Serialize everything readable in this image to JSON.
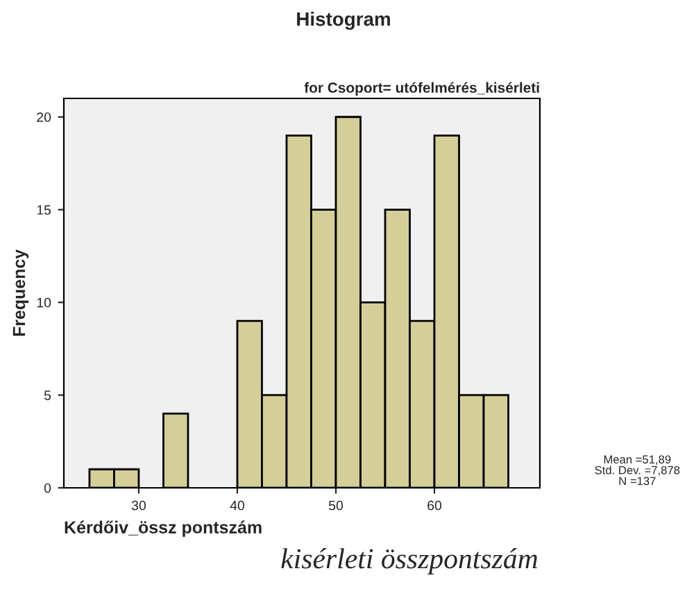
{
  "chart_data": {
    "type": "histogram",
    "title": "Histogram",
    "subtitle": "for Csoport= utófelmérés_kisérleti",
    "xlabel": "Kérdőiv_össz pontszám",
    "ylabel": "Frequency",
    "bins": [
      25,
      27.5,
      30,
      32.5,
      35,
      37.5,
      40,
      42.5,
      45,
      47.5,
      50,
      52.5,
      55,
      57.5,
      60,
      62.5,
      65,
      67.5
    ],
    "values": [
      1,
      1,
      0,
      4,
      0,
      0,
      9,
      5,
      19,
      15,
      20,
      10,
      15,
      9,
      19,
      5,
      5
    ],
    "color": "#d4cf98",
    "xlim": [
      22.4,
      70.7
    ],
    "xticks": [
      30,
      40,
      50,
      60
    ],
    "ylim": [
      0,
      21
    ],
    "yticks": [
      0,
      5,
      10,
      15,
      20
    ],
    "grid": false,
    "legend": false,
    "annotations": [
      "Mean =51,89\nStd. Dev. =7,878\nN =137",
      "kisérleti összpontszám"
    ]
  }
}
